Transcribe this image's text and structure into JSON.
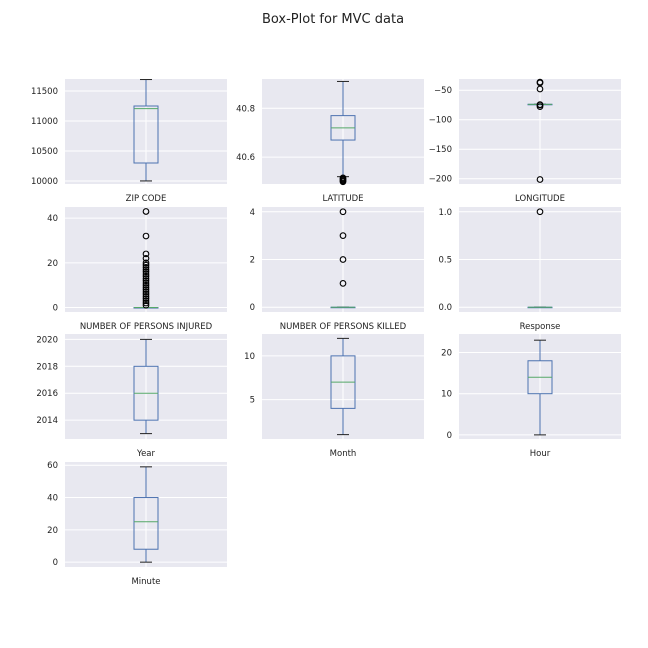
{
  "figure": {
    "title": "Box-Plot for MVC data"
  },
  "style": {
    "panel_bg": "#e8e8f0",
    "grid": "#ffffff",
    "box": "#4c72b0",
    "median": "#55a868",
    "flier": "#000000"
  },
  "chart_data": [
    {
      "type": "box",
      "xlabel": "ZIP CODE",
      "ylim": [
        9950,
        11700
      ],
      "yticks": [
        10000,
        10500,
        11000,
        11500
      ],
      "whislo": 10001,
      "q1": 10300,
      "med": 11207,
      "q3": 11250,
      "whishi": 11691,
      "fliers": []
    },
    {
      "type": "box",
      "xlabel": "LATITUDE",
      "ylim": [
        40.49,
        40.92
      ],
      "yticks": [
        40.6,
        40.8
      ],
      "whislo": 40.52,
      "q1": 40.67,
      "med": 40.72,
      "q3": 40.77,
      "whishi": 40.91,
      "fliers": [
        40.499,
        40.503,
        40.507,
        40.511,
        40.515
      ]
    },
    {
      "type": "box",
      "xlabel": "LONGITUDE",
      "ylim": [
        -209,
        -31
      ],
      "yticks": [
        -200,
        -150,
        -100,
        -50
      ],
      "whislo": -74.25,
      "q1": -74.0,
      "med": -73.93,
      "q3": -73.87,
      "whishi": -73.7,
      "fliers": [
        -201.4,
        -77.8,
        -75.1,
        -74.4,
        -48,
        -37.5,
        -36.2
      ]
    },
    {
      "type": "box",
      "xlabel": "NUMBER OF PERSONS INJURED",
      "ylim": [
        -2,
        45
      ],
      "yticks": [
        0,
        20,
        40
      ],
      "whislo": 0,
      "q1": 0,
      "med": 0,
      "q3": 0,
      "whishi": 0,
      "fliers": [
        1,
        2,
        3,
        4,
        5,
        6,
        7,
        8,
        9,
        10,
        11,
        12,
        13,
        14,
        15,
        16,
        17,
        18,
        19,
        20,
        22,
        24,
        32,
        43
      ]
    },
    {
      "type": "box",
      "xlabel": "NUMBER OF PERSONS KILLED",
      "ylim": [
        -0.2,
        4.2
      ],
      "yticks": [
        0,
        2,
        4
      ],
      "whislo": 0,
      "q1": 0,
      "med": 0,
      "q3": 0,
      "whishi": 0,
      "fliers": [
        1,
        2,
        3,
        4
      ]
    },
    {
      "type": "box",
      "xlabel": "Response",
      "ylim": [
        -0.05,
        1.05
      ],
      "yticks": [
        0.0,
        0.5,
        1.0
      ],
      "ytick_decimals": 1,
      "whislo": 0,
      "q1": 0,
      "med": 0,
      "q3": 0,
      "whishi": 0,
      "fliers": [
        1.0
      ]
    },
    {
      "type": "box",
      "xlabel": "Year",
      "ylim": [
        2012.6,
        2020.4
      ],
      "yticks": [
        2014,
        2016,
        2018,
        2020
      ],
      "whislo": 2013,
      "q1": 2014,
      "med": 2016,
      "q3": 2018,
      "whishi": 2020,
      "fliers": []
    },
    {
      "type": "box",
      "xlabel": "Month",
      "ylim": [
        0.5,
        12.5
      ],
      "yticks": [
        5,
        10
      ],
      "whislo": 1,
      "q1": 4,
      "med": 7,
      "q3": 10,
      "whishi": 12,
      "fliers": []
    },
    {
      "type": "box",
      "xlabel": "Hour",
      "ylim": [
        -1,
        24.5
      ],
      "yticks": [
        0,
        10,
        20
      ],
      "whislo": 0,
      "q1": 10,
      "med": 14,
      "q3": 18,
      "whishi": 23,
      "fliers": []
    },
    {
      "type": "box",
      "xlabel": "Minute",
      "ylim": [
        -3,
        62
      ],
      "yticks": [
        0,
        20,
        40,
        60
      ],
      "whislo": 0,
      "q1": 8,
      "med": 25,
      "q3": 40,
      "whishi": 59,
      "fliers": []
    }
  ]
}
